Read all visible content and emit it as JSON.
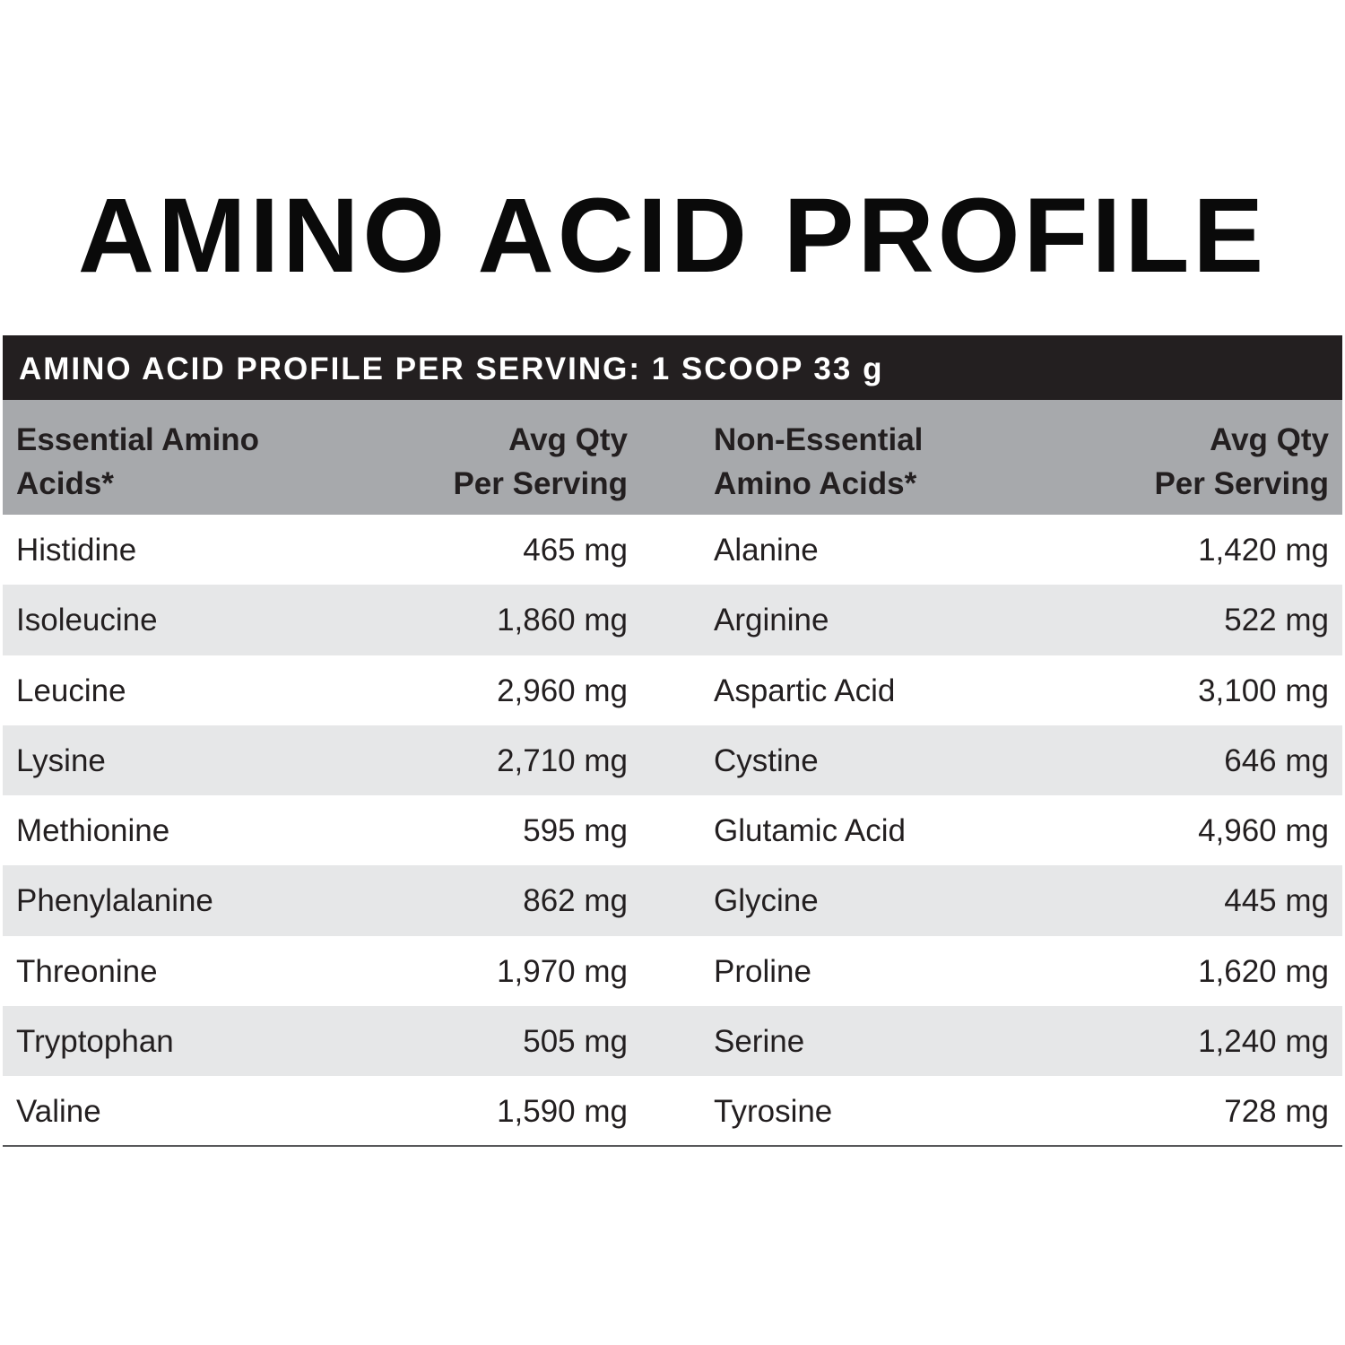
{
  "title": "AMINO ACID PROFILE",
  "banner": "AMINO ACID PROFILE PER SERVING: 1 SCOOP 33 g",
  "headers": {
    "essential": [
      "Essential Amino",
      "Acids*"
    ],
    "essential_qty": [
      "Avg Qty",
      "Per Serving"
    ],
    "non_essential": [
      "Non-Essential",
      "Amino Acids*"
    ],
    "non_essential_qty": [
      "Avg Qty",
      "Per Serving"
    ]
  },
  "rows": [
    {
      "essential": "Histidine",
      "essential_qty": "465 mg",
      "non_essential": "Alanine",
      "non_essential_qty": "1,420 mg"
    },
    {
      "essential": "Isoleucine",
      "essential_qty": "1,860 mg",
      "non_essential": "Arginine",
      "non_essential_qty": "522 mg"
    },
    {
      "essential": "Leucine",
      "essential_qty": "2,960 mg",
      "non_essential": "Aspartic Acid",
      "non_essential_qty": "3,100 mg"
    },
    {
      "essential": "Lysine",
      "essential_qty": "2,710 mg",
      "non_essential": "Cystine",
      "non_essential_qty": "646 mg"
    },
    {
      "essential": "Methionine",
      "essential_qty": "595 mg",
      "non_essential": "Glutamic Acid",
      "non_essential_qty": "4,960 mg"
    },
    {
      "essential": "Phenylalanine",
      "essential_qty": "862 mg",
      "non_essential": "Glycine",
      "non_essential_qty": "445 mg"
    },
    {
      "essential": "Threonine",
      "essential_qty": "1,970 mg",
      "non_essential": "Proline",
      "non_essential_qty": "1,620 mg"
    },
    {
      "essential": "Tryptophan",
      "essential_qty": "505 mg",
      "non_essential": "Serine",
      "non_essential_qty": "1,240 mg"
    },
    {
      "essential": "Valine",
      "essential_qty": "1,590 mg",
      "non_essential": "Tyrosine",
      "non_essential_qty": "728 mg"
    }
  ],
  "colors": {
    "banner": "#231f20",
    "header": "#a7a9ac",
    "alt_row": "#e6e7e8",
    "text": "#231f20"
  }
}
